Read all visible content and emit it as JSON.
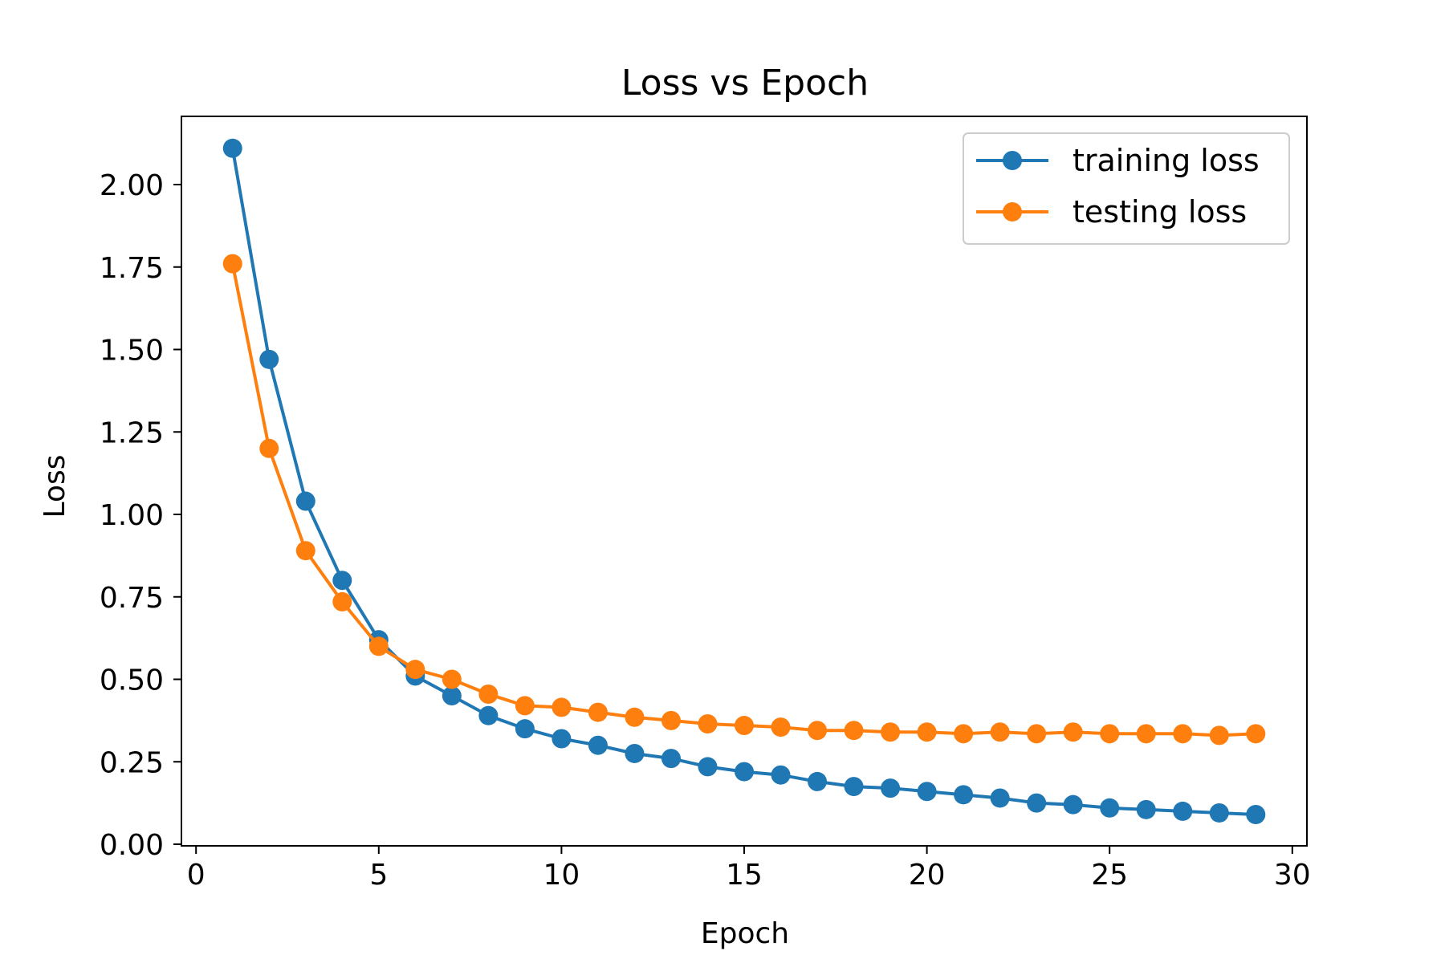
{
  "chart_data": {
    "type": "line",
    "title": "Loss vs Epoch",
    "xlabel": "Epoch",
    "ylabel": "Loss",
    "xlim": [
      -0.4,
      30.4
    ],
    "ylim": [
      0,
      2.2
    ],
    "xticks": [
      0,
      5,
      10,
      15,
      20,
      25,
      30
    ],
    "xtick_labels": [
      "0",
      "5",
      "10",
      "15",
      "20",
      "25",
      "30"
    ],
    "yticks": [
      0,
      0.25,
      0.5,
      0.75,
      1.0,
      1.25,
      1.5,
      1.75,
      2.0
    ],
    "ytick_labels": [
      "0.00",
      "0.25",
      "0.50",
      "0.75",
      "1.00",
      "1.25",
      "1.50",
      "1.75",
      "2.00"
    ],
    "grid": false,
    "legend_position": "top-right",
    "x": [
      1,
      2,
      3,
      4,
      5,
      6,
      7,
      8,
      9,
      10,
      11,
      12,
      13,
      14,
      15,
      16,
      17,
      18,
      19,
      20,
      21,
      22,
      23,
      24,
      25,
      26,
      27,
      28,
      29
    ],
    "series": [
      {
        "name": "training loss",
        "color": "#1f77b4",
        "marker": "circle",
        "values": [
          2.11,
          1.47,
          1.04,
          0.8,
          0.62,
          0.51,
          0.45,
          0.39,
          0.35,
          0.32,
          0.3,
          0.275,
          0.26,
          0.235,
          0.22,
          0.21,
          0.19,
          0.175,
          0.17,
          0.16,
          0.15,
          0.14,
          0.125,
          0.12,
          0.11,
          0.105,
          0.1,
          0.095,
          0.09
        ]
      },
      {
        "name": "testing loss",
        "color": "#ff7f0e",
        "marker": "circle",
        "values": [
          1.76,
          1.2,
          0.89,
          0.735,
          0.6,
          0.53,
          0.5,
          0.455,
          0.42,
          0.415,
          0.4,
          0.385,
          0.375,
          0.365,
          0.36,
          0.355,
          0.345,
          0.345,
          0.34,
          0.34,
          0.335,
          0.34,
          0.335,
          0.34,
          0.335,
          0.335,
          0.335,
          0.33,
          0.335
        ]
      }
    ]
  }
}
